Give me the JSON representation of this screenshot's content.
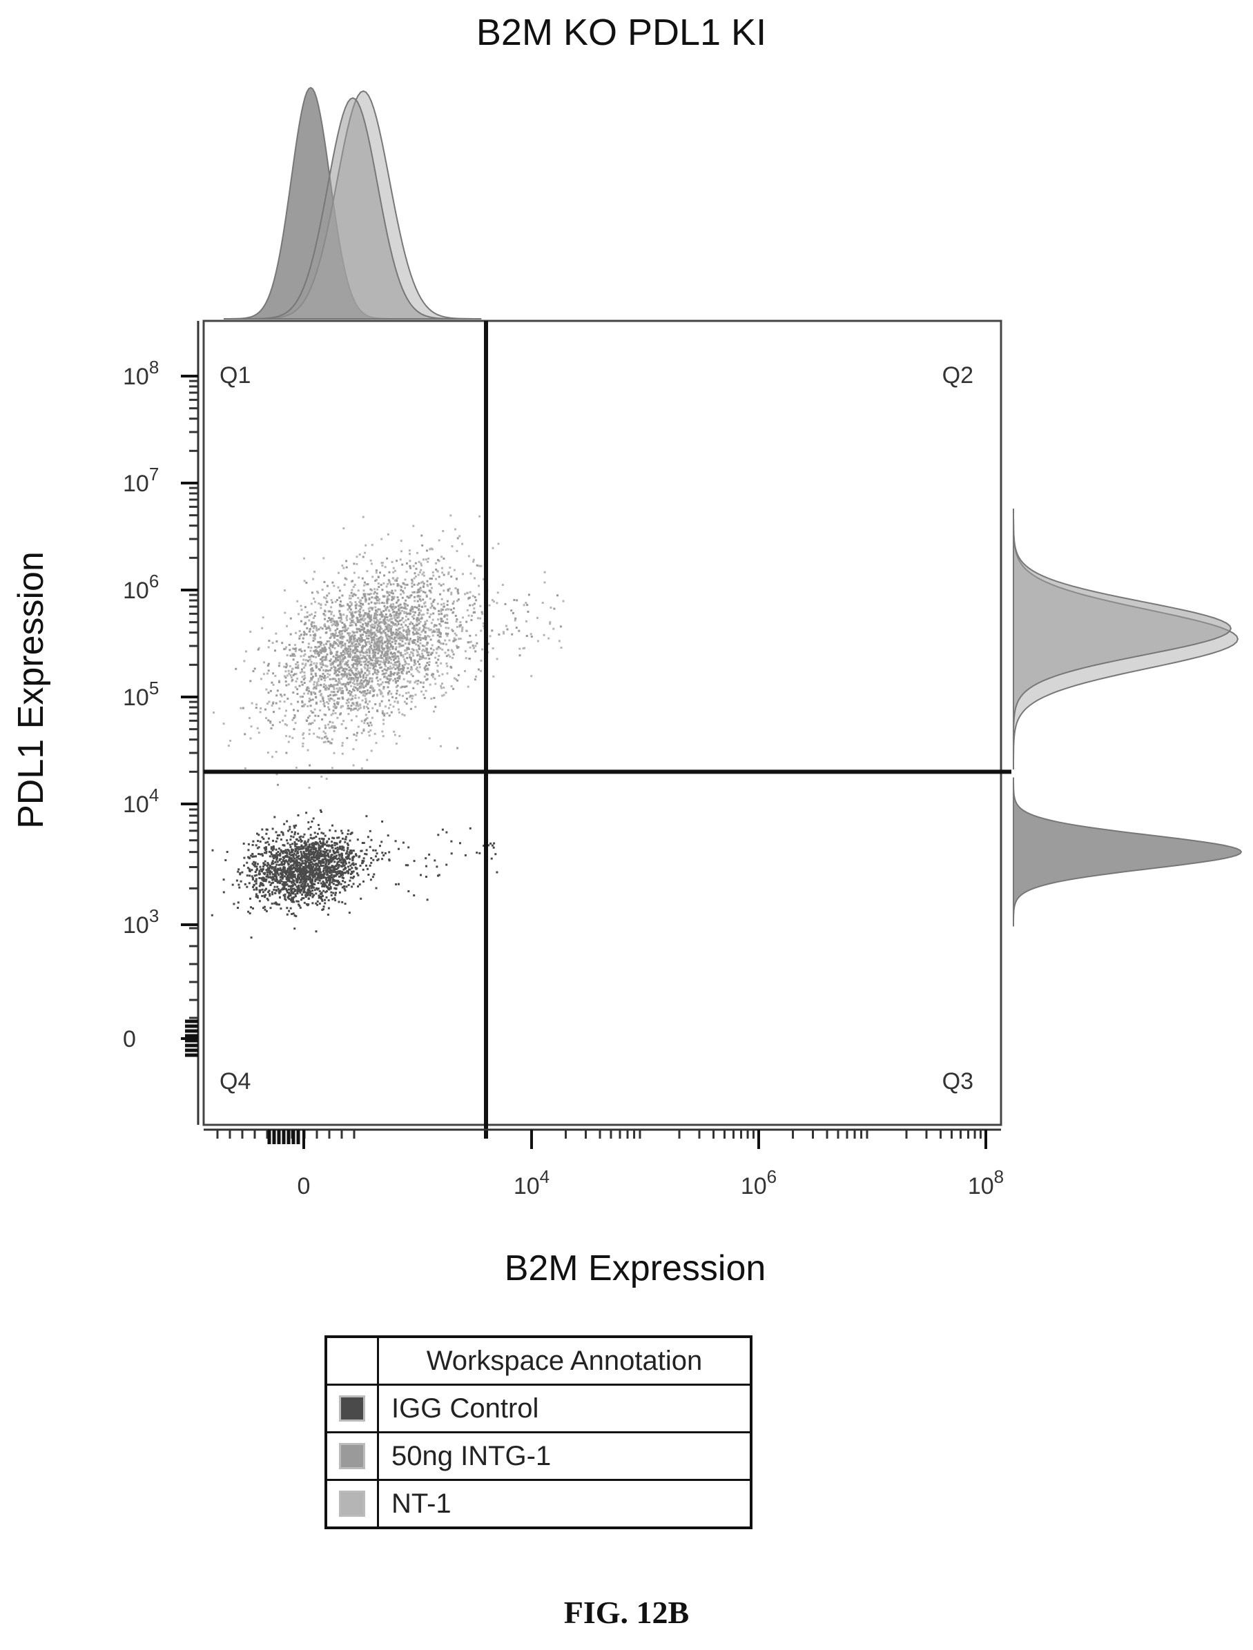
{
  "chart_data": {
    "type": "scatter",
    "title": "B2M KO PDL1 KI",
    "xlabel": "B2M Expression",
    "ylabel": "PDL1 Expression",
    "x_scale": "biexponential",
    "y_scale": "biexponential",
    "x_ticks": [
      {
        "value": 0,
        "label": "0"
      },
      {
        "value": 10000,
        "label": "10",
        "exp": "4"
      },
      {
        "value": 1000000,
        "label": "10",
        "exp": "6"
      },
      {
        "value": 100000000,
        "label": "10",
        "exp": "8"
      }
    ],
    "y_ticks": [
      {
        "value": 0,
        "label": "0"
      },
      {
        "value": 1000,
        "label": "10",
        "exp": "3"
      },
      {
        "value": 10000,
        "label": "10",
        "exp": "4"
      },
      {
        "value": 100000,
        "label": "10",
        "exp": "5"
      },
      {
        "value": 1000000,
        "label": "10",
        "exp": "6"
      },
      {
        "value": 10000000,
        "label": "10",
        "exp": "7"
      },
      {
        "value": 100000000,
        "label": "10",
        "exp": "8"
      }
    ],
    "quadrant_gate": {
      "x": 8000,
      "y": 20000
    },
    "quadrants": [
      "Q1",
      "Q2",
      "Q3",
      "Q4"
    ],
    "grid": false,
    "legend_position": "bottom",
    "legend": {
      "header": "Workspace Annotation",
      "entries": [
        "IGG Control",
        "50ng INTG-1",
        "NT-1"
      ]
    },
    "series": [
      {
        "name": "IGG Control",
        "color": "#4a4a4a",
        "b2m_center": 0,
        "pdl1_center": 3000,
        "pdl1_peak": 3000
      },
      {
        "name": "50ng INTG-1",
        "color": "#9a9a9a",
        "b2m_center": 30,
        "pdl1_center": 350000,
        "pdl1_peak": 350000
      },
      {
        "name": "NT-1",
        "color": "#b5b5b5",
        "b2m_center": 40,
        "pdl1_center": 300000,
        "pdl1_peak": 300000
      }
    ]
  },
  "figure_label": "FIG. 12B"
}
